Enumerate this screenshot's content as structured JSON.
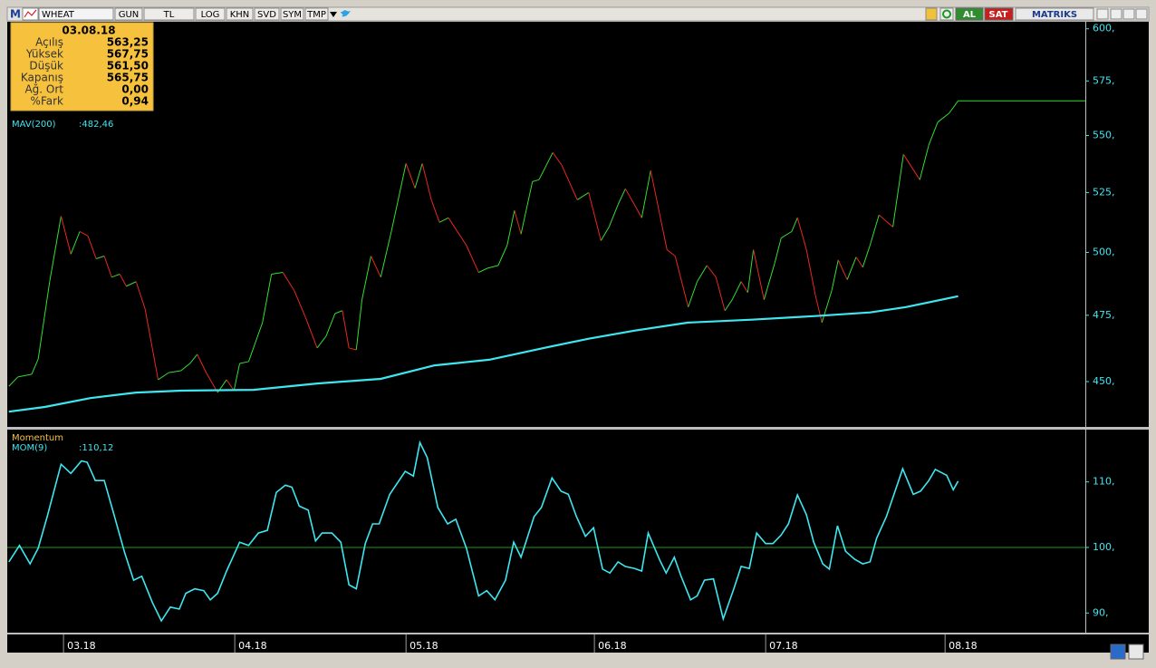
{
  "toolbar": {
    "logo": "M",
    "symbol": "WHEAT",
    "buttons": [
      "GUN",
      "TL",
      "LOG",
      "KHN",
      "SVD",
      "SYM",
      "TMP"
    ],
    "buy": "AL",
    "sell": "SAT",
    "brand": "MATRIKS"
  },
  "info_box": {
    "date": "03.08.18",
    "rows": [
      {
        "label": "Açılış",
        "value": "563,25"
      },
      {
        "label": "Yüksek",
        "value": "567,75"
      },
      {
        "label": "Düşük",
        "value": "561,50"
      },
      {
        "label": "Kapanış",
        "value": "565,75"
      },
      {
        "label": "Ağ. Ort",
        "value": "0,00"
      },
      {
        "label": "%Fark",
        "value": "0,94"
      }
    ]
  },
  "chart_data": [
    {
      "type": "line",
      "log_scale": true,
      "x": [
        0,
        1.1,
        2.8,
        3.6,
        5,
        6.4,
        7.6,
        8.7,
        9.7,
        10.7,
        11.7,
        12.6,
        13.6,
        14.4,
        15.6,
        16.7,
        18.3,
        19.6,
        21.1,
        22.2,
        23.1,
        24.2,
        25.6,
        26.7,
        27.6,
        28.3,
        29.4,
        31.1,
        32.2,
        33.6,
        35,
        36.4,
        37.8,
        38.9,
        40,
        40.9,
        41.7,
        42.6,
        43.3,
        44.4,
        45.6,
        46.9,
        48.7,
        49.8,
        50.7,
        51.8,
        52.8,
        53.9,
        55,
        56.1,
        57.6,
        58.7,
        60,
        61.1,
        62,
        62.8,
        64.2,
        65,
        66.7,
        67.8,
        69.7,
        71.1,
        72.6,
        73.6,
        74.7,
        75.6,
        76.7,
        77.6,
        78.7,
        80.7,
        81.7,
        83.3,
        84.4,
        85.6,
        86.7,
        87.8,
        88.7,
        89.8,
        90.6,
        91.3,
        92.6,
        93.9,
        94.7,
        96,
        96.7,
        97.8,
        98.9,
        99.7,
        100.9,
        101.7,
        102.8,
        103.9,
        104.7,
        105.6,
        106.7,
        108.4,
        109.7,
        111.7,
        112.8,
        113.9,
        115.3,
        116.4
      ],
      "xlim": [
        -0.2,
        132
      ],
      "ylim": [
        434,
        603
      ],
      "yticks": [
        {
          "value": 450,
          "label": "450,"
        },
        {
          "value": 475,
          "label": "475,"
        },
        {
          "value": 500,
          "label": "500,"
        },
        {
          "value": 525,
          "label": "525,"
        },
        {
          "value": 550,
          "label": "550,"
        },
        {
          "value": 575,
          "label": "575,"
        },
        {
          "value": 600,
          "label": "600,"
        }
      ],
      "series": [
        {
          "style": "updown",
          "up_color": "#33dd33",
          "down_color": "#e82820",
          "last_line": true,
          "values": [
            448.3,
            451.7,
            452.7,
            458.4,
            488.2,
            515.0,
            499.3,
            508.6,
            506.7,
            497.4,
            498.5,
            490.0,
            491.2,
            486.4,
            488.2,
            477.5,
            450.7,
            453.3,
            454.0,
            456.7,
            460.1,
            453.3,
            446.0,
            450.7,
            446.7,
            456.7,
            457.4,
            472.2,
            491.2,
            491.9,
            484.6,
            474.0,
            462.5,
            467.0,
            475.7,
            476.8,
            462.5,
            461.8,
            481.1,
            498.5,
            490.0,
            508.6,
            537.6,
            526.9,
            537.6,
            521.9,
            512.4,
            514.3,
            508.6,
            502.9,
            491.9,
            493.6,
            494.7,
            502.9,
            517.4,
            507.5,
            529.7,
            530.5,
            542.4,
            536.8,
            521.9,
            525.0,
            504.8,
            510.5,
            519.9,
            526.6,
            519.9,
            514.3,
            534.5,
            501.1,
            498.5,
            478.2,
            488.2,
            494.7,
            490.0,
            476.8,
            481.1,
            488.2,
            483.9,
            501.1,
            481.1,
            495.5,
            505.9,
            508.6,
            514.3,
            501.1,
            482.8,
            472.2,
            484.6,
            496.9,
            489.0,
            498.1,
            494.0,
            502.9,
            515.5,
            510.5,
            541.6,
            530.5,
            545.7,
            556.0,
            560.1,
            565.75
          ]
        },
        {
          "name": "MAV(200)",
          "color": "#3ee6f0",
          "last_label": ":482,46",
          "x": [
            0,
            4.4,
            10,
            15.6,
            21.1,
            30,
            37.8,
            45.6,
            52.2,
            58.9,
            65.6,
            71.1,
            76.7,
            83.3,
            91.1,
            98.9,
            105.6,
            110,
            116.4
          ],
          "values": [
            439.1,
            440.8,
            444.0,
            446.0,
            446.7,
            447.0,
            449.3,
            451.0,
            456.0,
            458.1,
            462.5,
            466.0,
            469.1,
            472.2,
            473.3,
            474.7,
            476.1,
            478.2,
            482.46
          ]
        }
      ]
    },
    {
      "type": "line",
      "title": "Momentum",
      "x": [
        0,
        1.3,
        2.6,
        3.6,
        4.7,
        6.4,
        7.6,
        8.9,
        9.6,
        10.6,
        11.7,
        12.8,
        14.2,
        15.3,
        16.3,
        17.6,
        18.7,
        19.8,
        20.9,
        21.7,
        22.8,
        23.9,
        24.7,
        25.6,
        26.7,
        28.3,
        29.4,
        30.6,
        31.7,
        32.8,
        33.9,
        34.7,
        35.6,
        36.7,
        37.6,
        38.4,
        39.6,
        40.7,
        41.7,
        42.6,
        43.7,
        44.6,
        45.4,
        46.7,
        48.6,
        49.6,
        50.4,
        51.3,
        52.6,
        53.8,
        54.8,
        56.1,
        57.6,
        58.6,
        59.6,
        60.9,
        61.9,
        62.8,
        64.4,
        65.3,
        66.6,
        67.7,
        68.6,
        69.6,
        70.7,
        71.7,
        72.8,
        73.7,
        74.7,
        75.6,
        76.7,
        77.6,
        78.4,
        79.8,
        80.6,
        81.6,
        82.4,
        83.6,
        84.4,
        85.3,
        86.4,
        87.6,
        88.9,
        89.8,
        90.8,
        91.7,
        92.8,
        93.7,
        94.7,
        95.6,
        96.7,
        97.8,
        98.7,
        99.8,
        100.6,
        101.6,
        102.6,
        103.7,
        104.7,
        105.6,
        106.4,
        107.6,
        109.6,
        110.9,
        111.8,
        112.8,
        113.6,
        115,
        115.8,
        116.4
      ],
      "xlim": [
        -0.2,
        132
      ],
      "xticks": [
        {
          "value": 6.7,
          "label": "03.18"
        },
        {
          "value": 27.7,
          "label": "04.18"
        },
        {
          "value": 48.7,
          "label": "05.18"
        },
        {
          "value": 71.8,
          "label": "06.18"
        },
        {
          "value": 92.8,
          "label": "07.18"
        },
        {
          "value": 114.8,
          "label": "08.18"
        }
      ],
      "ylim": [
        87,
        117.7
      ],
      "yticks": [
        {
          "value": 90,
          "label": "90,"
        },
        {
          "value": 100,
          "label": "100,"
        },
        {
          "value": 110,
          "label": "110,"
        }
      ],
      "reference_line": {
        "value": 100,
        "color": "#1e9a1e"
      },
      "series": [
        {
          "name": "MOM(9)",
          "color": "#3ee6f0",
          "last_label": ":110,12",
          "values": [
            97.8,
            100.3,
            97.5,
            99.9,
            104.7,
            112.7,
            111.3,
            113.2,
            113,
            110.2,
            110.2,
            105.4,
            99.2,
            95,
            95.6,
            91.6,
            88.8,
            90.9,
            90.6,
            93,
            93.7,
            93.4,
            92,
            93,
            96.4,
            100.8,
            100.3,
            102.2,
            102.6,
            108.4,
            109.5,
            109.2,
            106.3,
            105.7,
            101,
            102.2,
            102.2,
            100.8,
            94.3,
            93.7,
            100.6,
            103.6,
            103.6,
            108.1,
            111.6,
            110.9,
            116,
            113.7,
            106.1,
            103.6,
            104.3,
            99.9,
            92.6,
            93.4,
            92,
            95,
            100.8,
            98.5,
            104.7,
            106.1,
            110.6,
            108.6,
            108.1,
            104.7,
            101.7,
            103,
            96.7,
            96.1,
            97.8,
            97.1,
            96.8,
            96.4,
            102.2,
            98.1,
            96.1,
            98.5,
            95.7,
            92,
            92.6,
            95,
            95.2,
            89.1,
            93.7,
            97.1,
            96.8,
            102.2,
            100.6,
            100.6,
            101.9,
            103.6,
            108,
            105,
            100.8,
            97.5,
            96.7,
            103.3,
            99.4,
            98.2,
            97.5,
            97.8,
            101.4,
            104.7,
            112,
            108.1,
            108.6,
            110.2,
            111.9,
            111,
            108.8,
            110.12
          ]
        }
      ]
    }
  ]
}
